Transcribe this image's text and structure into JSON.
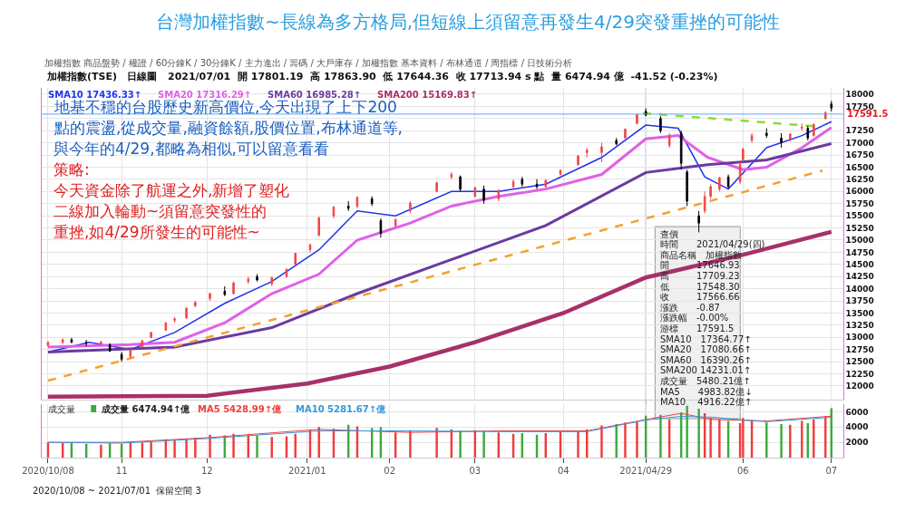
{
  "chart_data": [
    {
      "type": "candlestick",
      "title": "台灣加權指數~長線為多方格局,但短線上須留意再發生4/29突發重挫的可能性",
      "subtitle": "加權指數(TSE)   日線圖   2021/07/01  開 17801.19  高 17863.90  低 17644.36  收 17713.94 s 點  量 6474.94 億  -41.52 (-0.23%)",
      "x": [
        "2020-10-08",
        "2020-10-13",
        "2020-10-16",
        "2020-10-21",
        "2020-10-26",
        "2020-10-29",
        "2020-11-02",
        "2020-11-05",
        "2020-11-09",
        "2020-11-12",
        "2020-11-17",
        "2020-11-20",
        "2020-11-24",
        "2020-11-27",
        "2020-12-02",
        "2020-12-07",
        "2020-12-10",
        "2020-12-15",
        "2020-12-18",
        "2020-12-23",
        "2020-12-28",
        "2020-12-31",
        "2021-01-05",
        "2021-01-08",
        "2021-01-13",
        "2021-01-18",
        "2021-01-21",
        "2021-01-26",
        "2021-01-29",
        "2021-02-03",
        "2021-02-08",
        "2021-02-17",
        "2021-02-22",
        "2021-02-25",
        "2021-03-02",
        "2021-03-05",
        "2021-03-10",
        "2021-03-15",
        "2021-03-18",
        "2021-03-23",
        "2021-03-26",
        "2021-03-31",
        "2021-04-06",
        "2021-04-09",
        "2021-04-14",
        "2021-04-19",
        "2021-04-22",
        "2021-04-26",
        "2021-04-29",
        "2021-05-04",
        "2021-05-07",
        "2021-05-11",
        "2021-05-13",
        "2021-05-17",
        "2021-05-19",
        "2021-05-21",
        "2021-05-24",
        "2021-05-27",
        "2021-05-31",
        "2021-06-01",
        "2021-06-04",
        "2021-06-09",
        "2021-06-14",
        "2021-06-17",
        "2021-06-21",
        "2021-06-23",
        "2021-06-25",
        "2021-06-29",
        "2021-07-01"
      ],
      "ohlc": [
        [
          12830,
          12920,
          12810,
          12900
        ],
        [
          12900,
          12980,
          12860,
          12950
        ],
        [
          12950,
          12990,
          12880,
          12900
        ],
        [
          12900,
          12950,
          12820,
          12880
        ],
        [
          12880,
          12930,
          12840,
          12900
        ],
        [
          12850,
          12880,
          12700,
          12720
        ],
        [
          12650,
          12700,
          12500,
          12550
        ],
        [
          12600,
          12760,
          12580,
          12740
        ],
        [
          12800,
          12950,
          12780,
          12930
        ],
        [
          13000,
          13120,
          12980,
          13100
        ],
        [
          13150,
          13310,
          13130,
          13300
        ],
        [
          13350,
          13420,
          13300,
          13380
        ],
        [
          13400,
          13620,
          13380,
          13600
        ],
        [
          13650,
          13750,
          13620,
          13720
        ],
        [
          13800,
          13920,
          13750,
          13900
        ],
        [
          13950,
          14050,
          13850,
          13880
        ],
        [
          13900,
          14150,
          13880,
          14120
        ],
        [
          14150,
          14250,
          14100,
          14200
        ],
        [
          14250,
          14300,
          14150,
          14180
        ],
        [
          14100,
          14250,
          14050,
          14230
        ],
        [
          14250,
          14420,
          14230,
          14400
        ],
        [
          14500,
          14740,
          14480,
          14730
        ],
        [
          14800,
          14930,
          14750,
          14900
        ],
        [
          15100,
          15480,
          15080,
          15460
        ],
        [
          15500,
          15700,
          15450,
          15680
        ],
        [
          15700,
          15800,
          15600,
          15650
        ],
        [
          15700,
          15900,
          15650,
          15880
        ],
        [
          15850,
          15900,
          15700,
          15750
        ],
        [
          15400,
          15450,
          15050,
          15140
        ],
        [
          15300,
          15450,
          15250,
          15420
        ],
        [
          15600,
          15800,
          15550,
          15760
        ],
        [
          16000,
          16200,
          15980,
          16180
        ],
        [
          16300,
          16400,
          16250,
          16350
        ],
        [
          16300,
          16330,
          16000,
          16050
        ],
        [
          15900,
          16100,
          15880,
          16080
        ],
        [
          16050,
          16120,
          15750,
          15820
        ],
        [
          15850,
          16050,
          15800,
          16020
        ],
        [
          16100,
          16250,
          16050,
          16200
        ],
        [
          16250,
          16300,
          16100,
          16150
        ],
        [
          16150,
          16250,
          16050,
          16100
        ],
        [
          16100,
          16250,
          16080,
          16230
        ],
        [
          16350,
          16460,
          16330,
          16430
        ],
        [
          16550,
          16750,
          16530,
          16730
        ],
        [
          16800,
          16900,
          16700,
          16850
        ],
        [
          16800,
          17000,
          16600,
          16920
        ],
        [
          17050,
          17100,
          16950,
          16980
        ],
        [
          17100,
          17300,
          17080,
          17280
        ],
        [
          17400,
          17600,
          17380,
          17580
        ],
        [
          17646.93,
          17709.23,
          17548.3,
          17566.66
        ],
        [
          17500,
          17550,
          17200,
          17250
        ],
        [
          16950,
          17200,
          16900,
          17150
        ],
        [
          17200,
          17250,
          16450,
          16580
        ],
        [
          16400,
          16450,
          15700,
          15800
        ],
        [
          15500,
          15600,
          15160,
          15350
        ],
        [
          15600,
          16000,
          15550,
          15900
        ],
        [
          15900,
          16150,
          15850,
          16100
        ],
        [
          16050,
          16300,
          16000,
          16280
        ],
        [
          16300,
          16350,
          16050,
          16100
        ],
        [
          16200,
          16600,
          16150,
          16550
        ],
        [
          16650,
          16900,
          16600,
          16870
        ],
        [
          17050,
          17200,
          17000,
          17150
        ],
        [
          17200,
          17300,
          17100,
          17150
        ],
        [
          17100,
          17200,
          16900,
          17000
        ],
        [
          17050,
          17200,
          17030,
          17180
        ],
        [
          17300,
          17400,
          17250,
          17320
        ],
        [
          17300,
          17350,
          17050,
          17100
        ],
        [
          17150,
          17400,
          17130,
          17380
        ],
        [
          17500,
          17650,
          17480,
          17620
        ],
        [
          17801.19,
          17863.9,
          17644.36,
          17713.94
        ]
      ],
      "colors": [
        "#f04848",
        "#f04848",
        "#000000",
        "#000000",
        "#f04848",
        "#000000",
        "#000000",
        "#f04848",
        "#f04848",
        "#f04848",
        "#f04848",
        "#f04848",
        "#f04848",
        "#f04848",
        "#f04848",
        "#000000",
        "#f04848",
        "#f04848",
        "#000000",
        "#f04848",
        "#f04848",
        "#f04848",
        "#f04848",
        "#f04848",
        "#f04848",
        "#000000",
        "#f04848",
        "#000000",
        "#000000",
        "#f04848",
        "#f04848",
        "#f04848",
        "#f04848",
        "#000000",
        "#f04848",
        "#000000",
        "#f04848",
        "#f04848",
        "#000000",
        "#000000",
        "#f04848",
        "#f04848",
        "#f04848",
        "#f04848",
        "#f04848",
        "#000000",
        "#f04848",
        "#f04848",
        "#000000",
        "#000000",
        "#f04848",
        "#000000",
        "#000000",
        "#000000",
        "#f04848",
        "#f04848",
        "#f04848",
        "#000000",
        "#f04848",
        "#f04848",
        "#f04848",
        "#000000",
        "#000000",
        "#f04848",
        "#f04848",
        "#000000",
        "#f04848",
        "#f04848",
        "#000000"
      ],
      "series": [
        {
          "name": "SMA10 17436.33↑",
          "type": "line",
          "color": "#2233ee",
          "x": [
            "2020-10-08",
            "2020-10-22",
            "2020-11-05",
            "2020-11-20",
            "2020-12-07",
            "2020-12-23",
            "2021-01-08",
            "2021-01-21",
            "2021-02-03",
            "2021-02-22",
            "2021-03-10",
            "2021-03-26",
            "2021-04-14",
            "2021-04-29",
            "2021-05-10",
            "2021-05-19",
            "2021-05-27",
            "2021-06-09",
            "2021-06-21",
            "2021-07-01"
          ],
          "values": [
            12700,
            12900,
            12750,
            13100,
            13700,
            14150,
            14800,
            15600,
            15500,
            16000,
            16000,
            16150,
            16700,
            17364.77,
            17300,
            16300,
            16050,
            16900,
            17150,
            17436.33
          ]
        },
        {
          "name": "SMA20 17316.29↑",
          "type": "line",
          "color": "#e060e8",
          "x": [
            "2020-10-08",
            "2020-11-05",
            "2020-11-20",
            "2020-12-07",
            "2020-12-23",
            "2021-01-08",
            "2021-01-21",
            "2021-02-08",
            "2021-02-22",
            "2021-03-10",
            "2021-03-26",
            "2021-04-14",
            "2021-04-29",
            "2021-05-10",
            "2021-05-20",
            "2021-06-01",
            "2021-06-09",
            "2021-06-21",
            "2021-07-01"
          ],
          "values": [
            12800,
            12850,
            12900,
            13300,
            13900,
            14300,
            15000,
            15350,
            15700,
            15900,
            16050,
            16350,
            17080.66,
            17150,
            16700,
            16450,
            16500,
            16900,
            17316.29
          ]
        },
        {
          "name": "SMA60 16985.28↑",
          "type": "line",
          "color": "#6a3aa0",
          "x": [
            "2020-10-08",
            "2020-11-20",
            "2020-12-23",
            "2021-01-21",
            "2021-02-22",
            "2021-03-26",
            "2021-04-29",
            "2021-05-20",
            "2021-06-09",
            "2021-07-01"
          ],
          "values": [
            12700,
            12800,
            13200,
            13900,
            14600,
            15300,
            16390.26,
            16550,
            16650,
            16985.28
          ]
        },
        {
          "name": "SMA200 15169.83↑",
          "type": "line",
          "color": "#a8306a",
          "x": [
            "2020-10-08",
            "2020-12-01",
            "2021-01-04",
            "2021-02-01",
            "2021-03-02",
            "2021-04-01",
            "2021-04-29",
            "2021-06-01",
            "2021-07-01"
          ],
          "values": [
            11780,
            11800,
            12050,
            12400,
            12900,
            13500,
            14231.01,
            14700,
            15169.83
          ]
        },
        {
          "type": "line",
          "color": "#f5a030",
          "line_style": "dashed",
          "x": [
            "2020-10-08",
            "2021-06-28"
          ],
          "values": [
            12110,
            16430
          ]
        },
        {
          "type": "line",
          "color": "#88e030",
          "line_style": "dashed",
          "x": [
            "2021-04-28",
            "2021-06-28"
          ],
          "values": [
            17610,
            17330
          ]
        }
      ],
      "ref_lines": [
        {
          "axis": "y",
          "value": 17591.5,
          "label": "17591.5",
          "color": "#58a6ff"
        },
        {
          "axis": "x",
          "value": "2021-04-29",
          "color": "#58a6ff"
        }
      ],
      "xlim": [
        "2020-10-06",
        "2021-07-05"
      ],
      "xticks": [
        {
          "value": "2020-10-08",
          "label": null
        },
        {
          "value": "2020-11-02",
          "label": null
        },
        {
          "value": "2020-12-01",
          "label": null
        },
        {
          "value": "2021-01-04",
          "label": null
        },
        {
          "value": "2021-02-01",
          "label": null
        },
        {
          "value": "2021-03-02",
          "label": null
        },
        {
          "value": "2021-04-01",
          "label": null
        },
        {
          "value": "2021-04-29",
          "label": null
        },
        {
          "value": "2021-06-01",
          "label": null
        },
        {
          "value": "2021-07-01",
          "label": null
        }
      ],
      "ylim": [
        11720,
        18130
      ],
      "yticks": [
        12000,
        12250,
        12500,
        12750,
        13000,
        13250,
        13500,
        13750,
        14000,
        14250,
        14500,
        14750,
        15000,
        15250,
        15500,
        15750,
        16000,
        16250,
        16500,
        16750,
        17000,
        17250,
        {
          "value": 17500,
          "label": null
        },
        17750,
        18000
      ],
      "tick_labels": "y",
      "grid": true,
      "annotations": [
        "加權指數 商品盤勢 / 權證 / 60分鐘K / 30分鐘K / 主力進出 / 籌碼 / 大戶庫存 / 加權指數 基本資料 / 布林通道 / 周指標 / 日技術分析",
        "地基不穩的台股歷史新高價位,今天出現了上下200",
        "點的震盪,從成交量,融資餘額,股價位置,布林通道等,",
        "與今年的4/29,都略為相似,可以留意看看",
        "策略:",
        "今天資金除了航運之外,新增了塑化",
        "二線加入輪動~須留意突發性的",
        "重挫,如4/29所發生的可能性~",
        "查價",
        "時間　　2021/04/29(四)",
        "商品名稱　加權指數",
        "開　　　17646.93",
        "高　　　17709.23",
        "低　　　17548.30",
        "收　　　17566.66",
        "漲跌　　-0.87",
        "漲跌幅　-0.00%",
        "游標　　17591.5",
        "SMA10　17364.77↑",
        "SMA20　17080.66↑",
        "SMA60　16390.26↑",
        "SMA200 14231.01↑",
        "成交量　5480.21億↑",
        "MA5　　4983.82億↓",
        "MA10　 4916.22億↑",
        "2020/10/08 ~ 2021/07/01  保留空間 3"
      ]
    },
    {
      "type": "bar",
      "title": "成交量",
      "x": [
        "2020-10-08",
        "2020-10-13",
        "2020-10-16",
        "2020-10-21",
        "2020-10-26",
        "2020-10-29",
        "2020-11-02",
        "2020-11-05",
        "2020-11-09",
        "2020-11-12",
        "2020-11-17",
        "2020-11-20",
        "2020-11-24",
        "2020-11-27",
        "2020-12-02",
        "2020-12-07",
        "2020-12-10",
        "2020-12-15",
        "2020-12-18",
        "2020-12-23",
        "2020-12-28",
        "2020-12-31",
        "2021-01-05",
        "2021-01-08",
        "2021-01-13",
        "2021-01-18",
        "2021-01-21",
        "2021-01-26",
        "2021-01-29",
        "2021-02-03",
        "2021-02-08",
        "2021-02-17",
        "2021-02-22",
        "2021-02-25",
        "2021-03-02",
        "2021-03-05",
        "2021-03-10",
        "2021-03-15",
        "2021-03-18",
        "2021-03-23",
        "2021-03-26",
        "2021-03-31",
        "2021-04-06",
        "2021-04-09",
        "2021-04-14",
        "2021-04-19",
        "2021-04-22",
        "2021-04-26",
        "2021-04-29",
        "2021-05-04",
        "2021-05-07",
        "2021-05-11",
        "2021-05-13",
        "2021-05-17",
        "2021-05-19",
        "2021-05-21",
        "2021-05-24",
        "2021-05-27",
        "2021-05-31",
        "2021-06-01",
        "2021-06-04",
        "2021-06-09",
        "2021-06-14",
        "2021-06-17",
        "2021-06-21",
        "2021-06-23",
        "2021-06-25",
        "2021-06-29",
        "2021-07-01"
      ],
      "series": [
        {
          "name": "成交量 6474.94↑億",
          "type": "bar",
          "values": [
            2000,
            1900,
            2000,
            1800,
            1700,
            1900,
            1800,
            1900,
            2000,
            2100,
            2400,
            2300,
            2500,
            2600,
            3000,
            2900,
            3100,
            3000,
            2900,
            2700,
            2800,
            3100,
            3600,
            4000,
            3800,
            4300,
            4100,
            3900,
            4000,
            3300,
            3600,
            3900,
            3700,
            3500,
            3600,
            3500,
            3300,
            3100,
            3200,
            3000,
            3200,
            3400,
            3500,
            3700,
            4200,
            4400,
            4600,
            4700,
            5480.21,
            5600,
            5000,
            5900,
            6800,
            6400,
            5800,
            5200,
            5000,
            4800,
            4500,
            5200,
            4900,
            4600,
            4400,
            4300,
            4800,
            4500,
            5000,
            5400,
            6474.94
          ],
          "colors": [
            "#f03c3c",
            "#f03c3c",
            "#3caa3c",
            "#3caa3c",
            "#f03c3c",
            "#3caa3c",
            "#3caa3c",
            "#f03c3c",
            "#f03c3c",
            "#f03c3c",
            "#f03c3c",
            "#f03c3c",
            "#f03c3c",
            "#f03c3c",
            "#f03c3c",
            "#3caa3c",
            "#f03c3c",
            "#f03c3c",
            "#3caa3c",
            "#f03c3c",
            "#f03c3c",
            "#f03c3c",
            "#f03c3c",
            "#f03c3c",
            "#f03c3c",
            "#3caa3c",
            "#f03c3c",
            "#3caa3c",
            "#3caa3c",
            "#f03c3c",
            "#f03c3c",
            "#f03c3c",
            "#f03c3c",
            "#3caa3c",
            "#f03c3c",
            "#3caa3c",
            "#f03c3c",
            "#f03c3c",
            "#3caa3c",
            "#3caa3c",
            "#f03c3c",
            "#f03c3c",
            "#f03c3c",
            "#f03c3c",
            "#f03c3c",
            "#3caa3c",
            "#f03c3c",
            "#f03c3c",
            "#3caa3c",
            "#3caa3c",
            "#f03c3c",
            "#3caa3c",
            "#3caa3c",
            "#3caa3c",
            "#f03c3c",
            "#f03c3c",
            "#f03c3c",
            "#3caa3c",
            "#f03c3c",
            "#f03c3c",
            "#f03c3c",
            "#3caa3c",
            "#3caa3c",
            "#f03c3c",
            "#f03c3c",
            "#3caa3c",
            "#f03c3c",
            "#f03c3c",
            "#3caa3c"
          ]
        },
        {
          "name": "MA5 5428.99↑億",
          "type": "line",
          "color": "#f03c3c",
          "x": [
            "2020-10-08",
            "2020-11-02",
            "2020-12-01",
            "2021-01-08",
            "2021-02-08",
            "2021-03-10",
            "2021-04-09",
            "2021-04-29",
            "2021-05-11",
            "2021-05-21",
            "2021-06-09",
            "2021-07-01"
          ],
          "values": [
            2000,
            2000,
            2600,
            3700,
            3300,
            3500,
            3500,
            4983.82,
            5800,
            5000,
            4800,
            5428.99
          ]
        },
        {
          "name": "MA10 5281.67↑億",
          "type": "line",
          "color": "#3399dd",
          "x": [
            "2020-10-08",
            "2020-11-02",
            "2020-12-01",
            "2021-01-08",
            "2021-02-08",
            "2021-03-10",
            "2021-04-09",
            "2021-04-29",
            "2021-05-11",
            "2021-05-21",
            "2021-06-09",
            "2021-07-01"
          ],
          "values": [
            2000,
            1900,
            2500,
            3500,
            3500,
            3400,
            3400,
            4916.22,
            5400,
            5300,
            4700,
            5281.67
          ]
        }
      ],
      "xlim": [
        "2020-10-06",
        "2021-07-05"
      ],
      "xticks": [
        {
          "value": "2020-10-08",
          "label": "2020/10/08"
        },
        {
          "value": "2020-11-02",
          "label": "11"
        },
        {
          "value": "2020-12-01",
          "label": "12"
        },
        {
          "value": "2021-01-04",
          "label": "2021/01"
        },
        {
          "value": "2021-02-01",
          "label": "02"
        },
        {
          "value": "2021-03-02",
          "label": "03"
        },
        {
          "value": "2021-04-01",
          "label": "04"
        },
        {
          "value": "2021-04-29",
          "label": "2021/04/29"
        },
        {
          "value": "2021-06-01",
          "label": "06"
        },
        {
          "value": "2021-07-01",
          "label": "07"
        }
      ],
      "ylim": [
        0,
        7000
      ],
      "yticks": [
        2000,
        4000,
        6000
      ],
      "grid": true
    }
  ]
}
